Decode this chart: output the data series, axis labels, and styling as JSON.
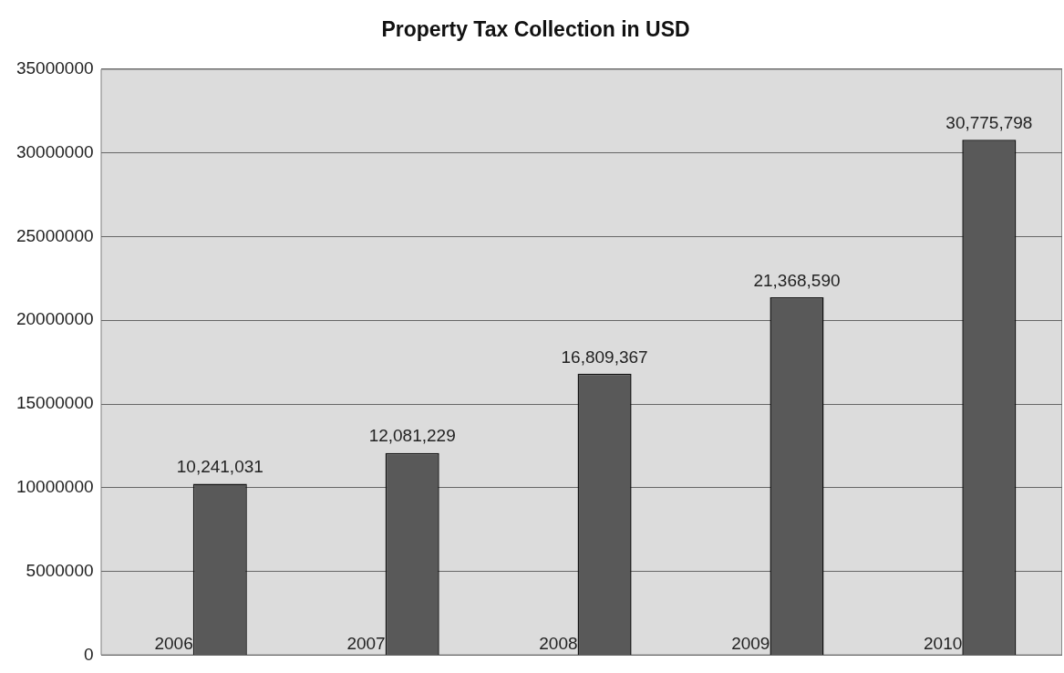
{
  "chart_data": {
    "type": "bar",
    "title": "Property Tax Collection in USD",
    "categories": [
      "2006",
      "2007",
      "2008",
      "2009",
      "2010"
    ],
    "values": [
      10241031,
      12081229,
      16809367,
      21368590,
      30775798
    ],
    "color": "#595959",
    "ylim": [
      0,
      35000000
    ],
    "yticks": [
      0,
      5000000,
      10000000,
      15000000,
      20000000,
      25000000,
      30000000,
      35000000
    ],
    "value_labels": [
      "10,241,031",
      "12,081,229",
      "16,809,367",
      "21,368,590",
      "30,775,798"
    ],
    "grid": "y",
    "legend": false
  }
}
